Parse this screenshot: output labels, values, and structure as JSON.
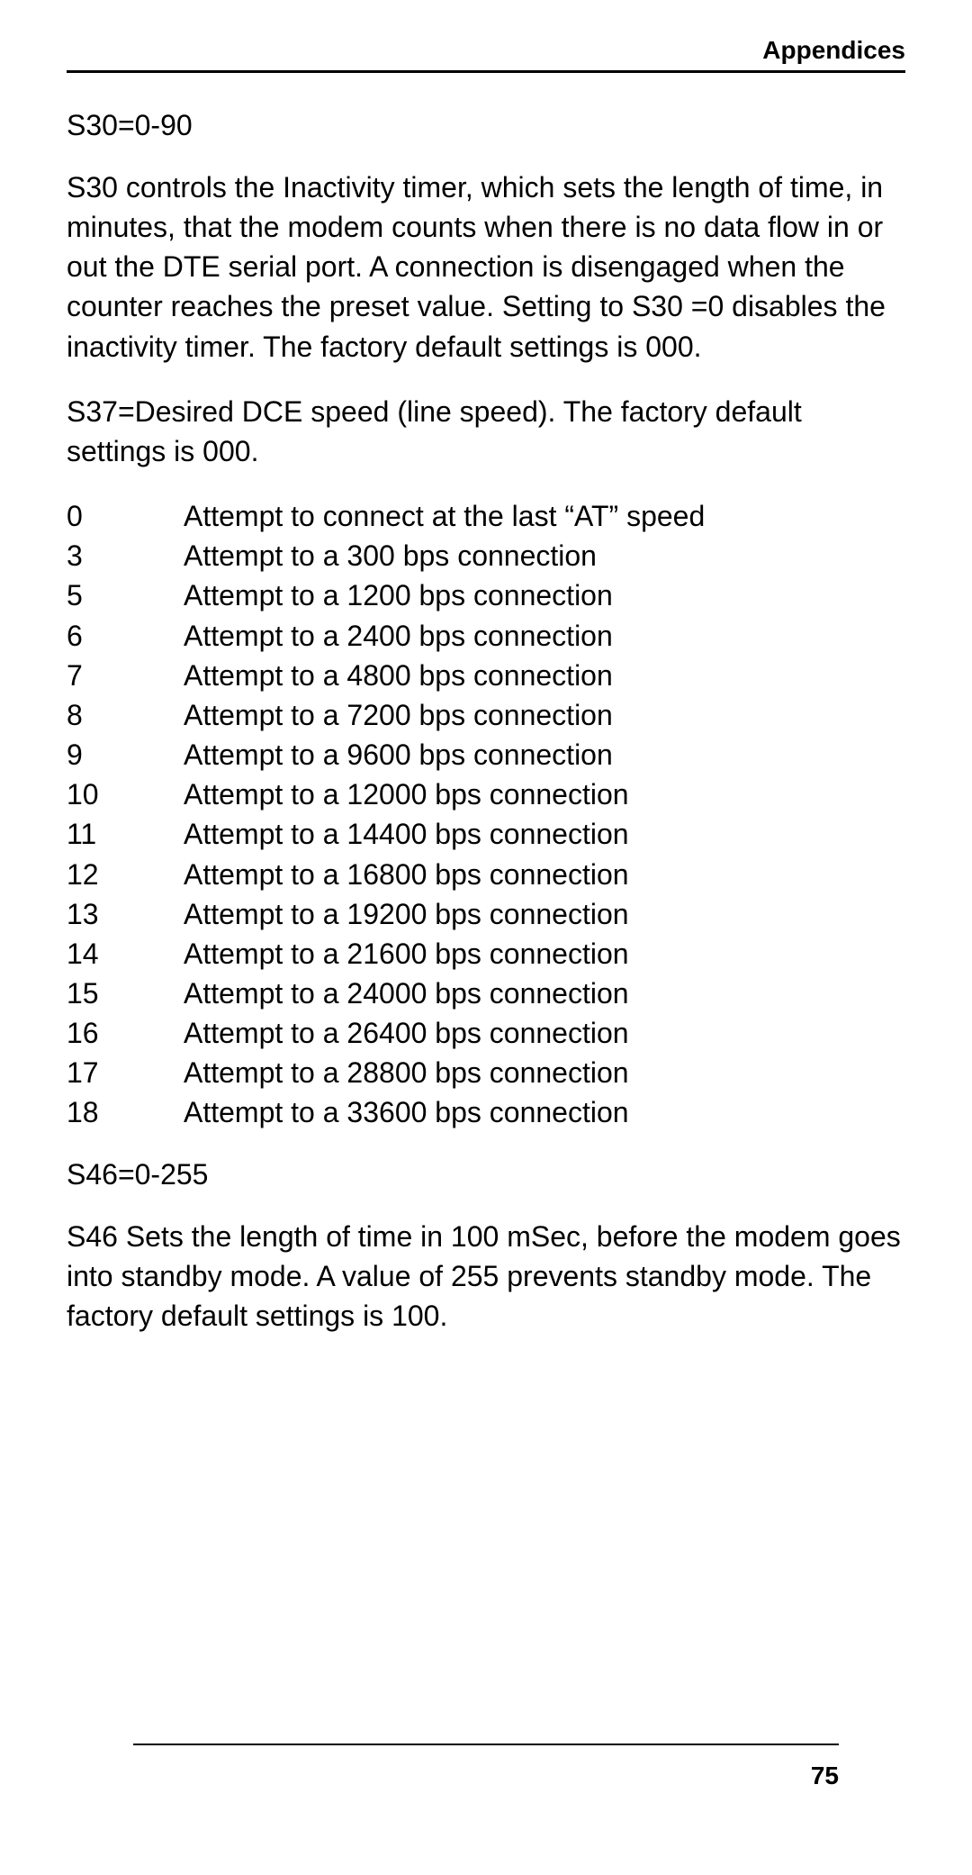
{
  "header": {
    "title": "Appendices"
  },
  "content": {
    "s30_title": "S30=0-90",
    "s30_paragraph": "S30 controls the Inactivity timer, which sets the length of time, in minutes, that the modem counts when there is no data flow in or out the DTE serial port. A connection is disengaged when the counter reaches the preset value. Setting to S30 =0 disables the inactivity timer. The factory default settings is 000.",
    "s37_paragraph": "S37=Desired DCE speed (line speed). The factory default settings is 000.",
    "speed_rows": [
      {
        "code": "0",
        "desc": "Attempt to connect at the last “AT” speed"
      },
      {
        "code": "3",
        "desc": "Attempt to a 300 bps connection"
      },
      {
        "code": "5",
        "desc": "Attempt to a 1200 bps connection"
      },
      {
        "code": "6",
        "desc": "Attempt to a 2400 bps connection"
      },
      {
        "code": "7",
        "desc": "Attempt to a 4800 bps connection"
      },
      {
        "code": "8",
        "desc": "Attempt to a 7200 bps connection"
      },
      {
        "code": "9",
        "desc": "Attempt to a 9600 bps connection"
      },
      {
        "code": "10",
        "desc": "Attempt to a 12000 bps connection"
      },
      {
        "code": "11",
        "desc": "Attempt to a 14400 bps connection"
      },
      {
        "code": "12",
        "desc": "Attempt to a 16800 bps connection"
      },
      {
        "code": "13",
        "desc": "Attempt to a 19200 bps connection"
      },
      {
        "code": "14",
        "desc": "Attempt to a 21600 bps connection"
      },
      {
        "code": "15",
        "desc": "Attempt to a 24000 bps connection"
      },
      {
        "code": "16",
        "desc": "Attempt to a 26400 bps connection"
      },
      {
        "code": "17",
        "desc": "Attempt to a 28800 bps connection"
      },
      {
        "code": "18",
        "desc": "Attempt to a 33600 bps connection"
      }
    ],
    "s46_title": "S46=0-255",
    "s46_paragraph": "S46 Sets the length of time in 100 mSec, before the modem goes into standby mode.  A value of 255 prevents standby mode.  The factory default settings is 100."
  },
  "footer": {
    "page_number": "75"
  }
}
